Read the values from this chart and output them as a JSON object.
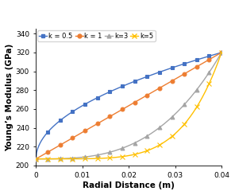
{
  "title": "",
  "xlabel": "Radial Distance (m)",
  "ylabel": "Young’s Modulus (GPa)",
  "E_metal": 207.0,
  "E_ceramic": 320.0,
  "R": 0.04,
  "k_values": [
    0.5,
    1,
    3,
    5
  ],
  "colors": [
    "#4472C4",
    "#ED7D31",
    "#A5A5A5",
    "#FFC000"
  ],
  "labels": [
    "k = 0.5",
    "k = 1",
    "k=3",
    "k=5"
  ],
  "markers": [
    "s",
    "o",
    "^",
    "x"
  ],
  "marker_sizes": [
    3.5,
    3.5,
    3.5,
    4.5
  ],
  "xlim": [
    0,
    0.04
  ],
  "ylim": [
    200,
    345
  ],
  "yticks": [
    200,
    220,
    240,
    260,
    280,
    300,
    320,
    340
  ],
  "xticks": [
    0,
    0.01,
    0.02,
    0.03,
    0.04
  ],
  "xtick_labels": [
    "0",
    "0.01",
    "0.02",
    "0.03",
    "0.04"
  ],
  "n_points": 300,
  "n_markers": 16,
  "figsize": [
    2.96,
    2.45
  ],
  "dpi": 100
}
